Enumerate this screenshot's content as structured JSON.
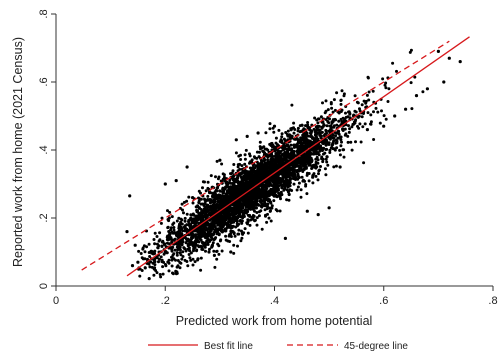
{
  "chart_data": {
    "type": "scatter",
    "title": "",
    "xlabel": "Predicted work from home potential",
    "ylabel": "Reported work from home (2021 Census)",
    "xlim": [
      0,
      0.8
    ],
    "ylim": [
      0,
      0.8
    ],
    "xticks": [
      0,
      0.2,
      0.4,
      0.6,
      0.8
    ],
    "yticks": [
      0,
      0.2,
      0.4,
      0.6,
      0.8
    ],
    "xtick_labels": [
      "0",
      ".2",
      ".4",
      ".6",
      ".8"
    ],
    "ytick_labels": [
      "0",
      ".2",
      ".4",
      ".6",
      ".8"
    ],
    "grid": false,
    "legend_position": "bottom",
    "point_count_estimate": 4000,
    "points": [
      [
        0.13,
        0.16
      ],
      [
        0.135,
        0.265
      ],
      [
        0.14,
        0.06
      ],
      [
        0.145,
        0.12
      ],
      [
        0.15,
        0.07
      ],
      [
        0.16,
        0.08
      ],
      [
        0.17,
        0.065
      ],
      [
        0.18,
        0.05
      ],
      [
        0.2,
        0.3
      ],
      [
        0.22,
        0.31
      ],
      [
        0.24,
        0.35
      ],
      [
        0.25,
        0.26
      ],
      [
        0.26,
        0.08
      ],
      [
        0.28,
        0.1
      ],
      [
        0.29,
        0.09
      ],
      [
        0.3,
        0.37
      ],
      [
        0.32,
        0.1
      ],
      [
        0.33,
        0.43
      ],
      [
        0.35,
        0.44
      ],
      [
        0.37,
        0.45
      ],
      [
        0.4,
        0.47
      ],
      [
        0.42,
        0.14
      ],
      [
        0.46,
        0.22
      ],
      [
        0.48,
        0.21
      ],
      [
        0.5,
        0.23
      ],
      [
        0.47,
        0.32
      ],
      [
        0.52,
        0.35
      ],
      [
        0.55,
        0.5
      ],
      [
        0.57,
        0.46
      ],
      [
        0.6,
        0.47
      ],
      [
        0.62,
        0.5
      ],
      [
        0.64,
        0.52
      ],
      [
        0.66,
        0.56
      ],
      [
        0.68,
        0.58
      ],
      [
        0.7,
        0.69
      ],
      [
        0.72,
        0.67
      ],
      [
        0.74,
        0.66
      ],
      [
        0.71,
        0.6
      ]
    ],
    "series": [
      {
        "name": "Best fit line",
        "type": "line",
        "style": "solid",
        "color": "#d7191c",
        "x": [
          0.13,
          0.757
        ],
        "y": [
          0.03,
          0.733
        ]
      },
      {
        "name": "45-degree line",
        "type": "line",
        "style": "dashed",
        "color": "#d7191c",
        "x": [
          0.047,
          0.72
        ],
        "y": [
          0.047,
          0.72
        ]
      }
    ],
    "point_color": "#000000",
    "cloud": {
      "x_range": [
        0.15,
        0.7
      ],
      "slope": 1.12,
      "intercept": -0.115,
      "residual_sd": 0.038
    }
  },
  "legend": {
    "best_fit_label": "Best fit line",
    "line45_label": "45-degree line"
  }
}
